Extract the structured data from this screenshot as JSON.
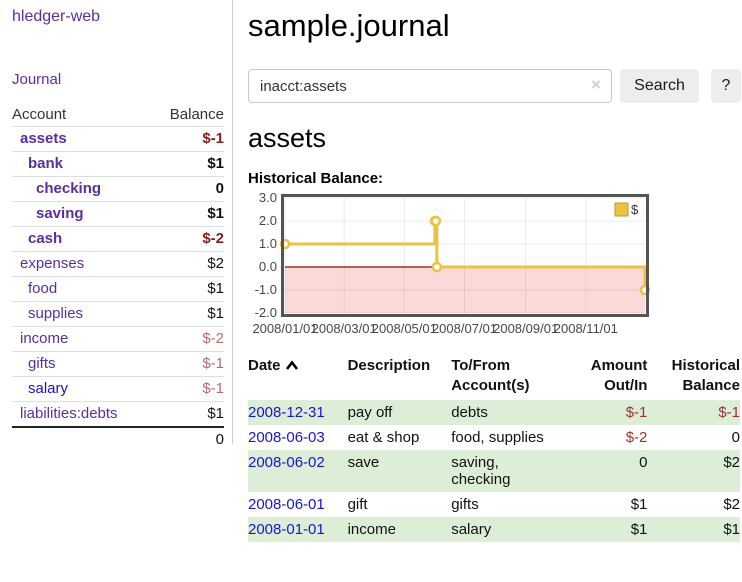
{
  "brand": "hledger-web",
  "nav": {
    "journal_label": "Journal"
  },
  "sidebar_table": {
    "headers": {
      "account": "Account",
      "balance": "Balance"
    },
    "rows": [
      {
        "account": "assets",
        "balance": "$-1",
        "level": 0,
        "emphasized": true,
        "tone": "strong-negative",
        "link_style": "purple"
      },
      {
        "account": "bank",
        "balance": "$1",
        "level": 1,
        "emphasized": true,
        "tone": "normal",
        "link_style": "purple"
      },
      {
        "account": "checking",
        "balance": "0",
        "level": 2,
        "emphasized": true,
        "tone": "normal",
        "link_style": "purple"
      },
      {
        "account": "saving",
        "balance": "$1",
        "level": 2,
        "emphasized": true,
        "tone": "normal",
        "link_style": "purple"
      },
      {
        "account": "cash",
        "balance": "$-2",
        "level": 1,
        "emphasized": true,
        "tone": "strong-negative",
        "link_style": "purple"
      },
      {
        "account": "expenses",
        "balance": "$2",
        "level": 0,
        "emphasized": false,
        "tone": "normal",
        "link_style": "purple"
      },
      {
        "account": "food",
        "balance": "$1",
        "level": 1,
        "emphasized": false,
        "tone": "normal",
        "link_style": "purple"
      },
      {
        "account": "supplies",
        "balance": "$1",
        "level": 1,
        "emphasized": false,
        "tone": "normal",
        "link_style": "purple"
      },
      {
        "account": "income",
        "balance": "$-2",
        "level": 0,
        "emphasized": false,
        "tone": "negative-muted",
        "link_style": "purple"
      },
      {
        "account": "gifts",
        "balance": "$-1",
        "level": 1,
        "emphasized": false,
        "tone": "negative-muted",
        "link_style": "purple"
      },
      {
        "account": "salary",
        "balance": "$-1",
        "level": 1,
        "emphasized": false,
        "tone": "negative-muted",
        "link_style": "blue"
      },
      {
        "account": "liabilities:debts",
        "balance": "$1",
        "level": 0,
        "emphasized": false,
        "tone": "normal",
        "link_style": "purple"
      }
    ],
    "total": "0"
  },
  "header": {
    "title": "sample.journal"
  },
  "search": {
    "value": "inacct:assets",
    "clear_icon": "×",
    "button_label": "Search",
    "help_label": "?"
  },
  "account_page": {
    "title": "assets",
    "chart_heading": "Historical Balance:"
  },
  "chart_data": {
    "type": "line",
    "step": true,
    "title": "Historical Balance:",
    "legend": [
      {
        "label": "$"
      }
    ],
    "legend_position": "top-right",
    "grid": true,
    "xlim": [
      "2008-01-01",
      "2008-12-31"
    ],
    "ylim": [
      -2.0,
      3.0
    ],
    "y_ticks": [
      3.0,
      2.0,
      1.0,
      0.0,
      -1.0,
      -2.0
    ],
    "x_ticks": [
      {
        "date": "2008-01-01",
        "label": "2008/01/01"
      },
      {
        "date": "2008-03-01",
        "label": "2008/03/01"
      },
      {
        "date": "2008-05-01",
        "label": "2008/05/01"
      },
      {
        "date": "2008-07-01",
        "label": "2008/07/01"
      },
      {
        "date": "2008-09-01",
        "label": "2008/09/01"
      },
      {
        "date": "2008-11-01",
        "label": "2008/11/01"
      }
    ],
    "series": [
      {
        "name": "$",
        "points": [
          {
            "date": "2008-01-01",
            "value": 1
          },
          {
            "date": "2008-06-01",
            "value": 2
          },
          {
            "date": "2008-06-02",
            "value": 2
          },
          {
            "date": "2008-06-03",
            "value": 0
          },
          {
            "date": "2008-12-31",
            "value": -1
          }
        ]
      }
    ],
    "negative_region": true
  },
  "register_table": {
    "headers": [
      {
        "label": "Date",
        "sortable": true,
        "sort": "ascending"
      },
      {
        "label": "Description"
      },
      {
        "label": "To/From Account(s)"
      },
      {
        "label": "Amount Out/In",
        "align": "right"
      },
      {
        "label": "Historical Balance",
        "align": "right"
      }
    ],
    "rows": [
      {
        "date": "2008-12-31",
        "description": "pay off",
        "accounts": "debts",
        "amount": "$-1",
        "balance": "$-1"
      },
      {
        "date": "2008-06-03",
        "description": "eat & shop",
        "accounts": "food, supplies",
        "amount": "$-2",
        "balance": "0"
      },
      {
        "date": "2008-06-02",
        "description": "save",
        "accounts": "saving, checking",
        "amount": "0",
        "balance": "$2"
      },
      {
        "date": "2008-06-01",
        "description": "gift",
        "accounts": "gifts",
        "amount": "$1",
        "balance": "$2"
      },
      {
        "date": "2008-01-01",
        "description": "income",
        "accounts": "salary",
        "amount": "$1",
        "balance": "$1"
      }
    ]
  },
  "colors": {
    "link_purple": "#5b2da0",
    "link_blue": "#1515d6",
    "negative_strong": "#8b1c1c",
    "negative": "#993333",
    "negative_muted": "#b26d6d",
    "row_shade_green": "#ddeed6",
    "chart_series_yellow": "#edc240",
    "chart_negative_fill": "#fbd9d9",
    "chart_zero_line": "#a00000",
    "chart_border": "#545454",
    "button_bg": "#ededed"
  }
}
